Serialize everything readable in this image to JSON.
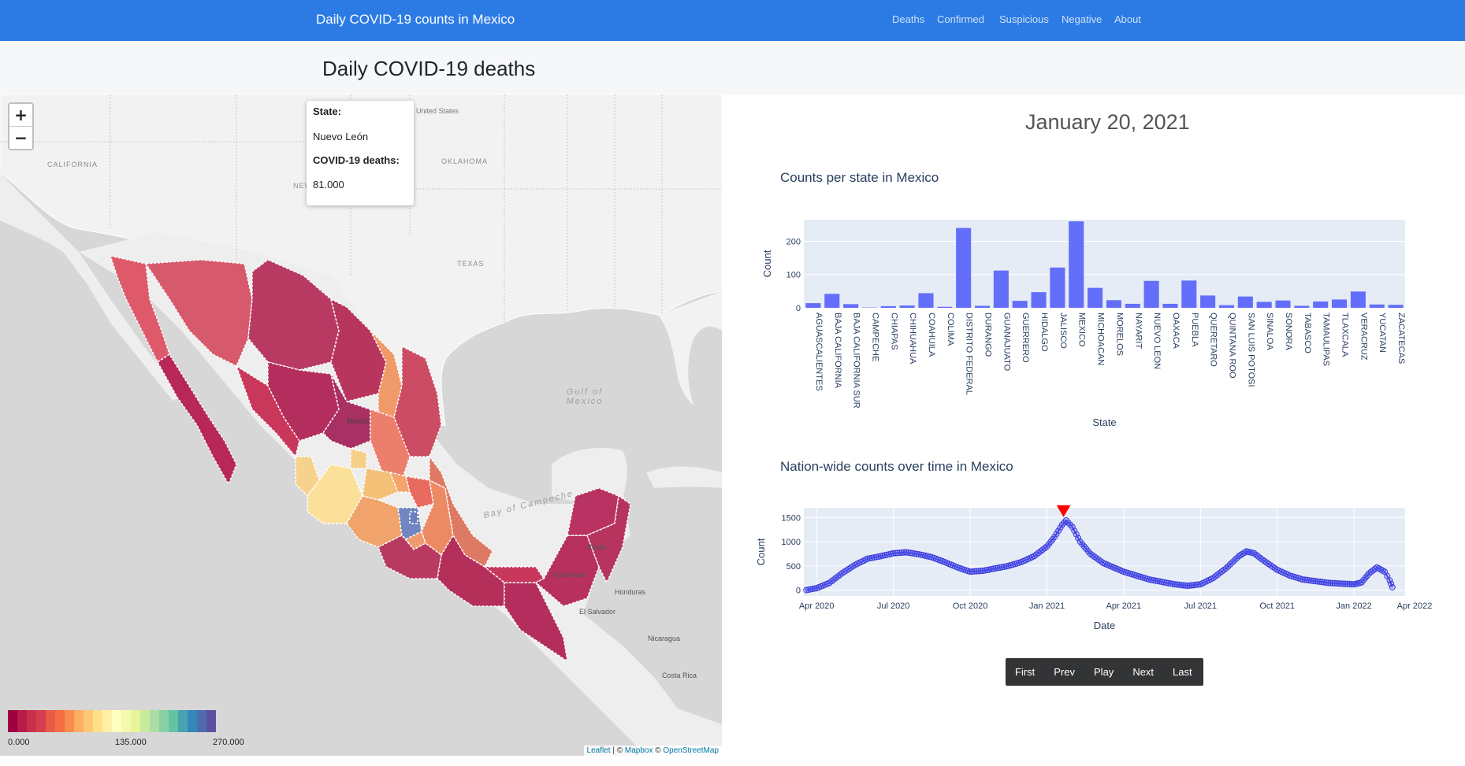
{
  "navbar": {
    "brand": "Daily COVID-19 counts in Mexico",
    "links": [
      "Deaths",
      "Confirmed",
      "Suspicious",
      "Negative",
      "About"
    ]
  },
  "page": {
    "title": "Daily COVID-19 deaths"
  },
  "map": {
    "zoom_in": "+",
    "zoom_out": "−",
    "popup": {
      "state_label": "State:",
      "state_value": "Nuevo León",
      "metric_label": "COVID-19 deaths:",
      "metric_value": "81.000"
    },
    "legend": {
      "min": "0.000",
      "mid": "135.000",
      "max": "270.000",
      "colors": [
        "#9e0142",
        "#b51c4a",
        "#c8304b",
        "#d53e4f",
        "#e55b47",
        "#f46d43",
        "#f88c51",
        "#fdae61",
        "#fdc776",
        "#fee08b",
        "#fff0a6",
        "#ffffbf",
        "#f3faad",
        "#e6f598",
        "#c8e99e",
        "#abdda4",
        "#89d0a4",
        "#66c2a5",
        "#4aa2b1",
        "#3288bd",
        "#4f6bad",
        "#5e4fa2"
      ]
    },
    "labels": {
      "country_us": "United States",
      "gulf": "Gulf of Mexico",
      "bay_campeche": "Bay of Campeche",
      "mexico": "Mexico",
      "california": "CALIFORNIA",
      "new_mexico": "NEW MEXICO",
      "texas": "TEXAS",
      "oklahoma": "OKLAHOMA",
      "guatemala": "Guatemala",
      "honduras": "Honduras",
      "el_salvador": "El Salvador",
      "nicaragua": "Nicaragua",
      "costa_rica": "Costa Rica",
      "belize": "Belize"
    },
    "attribution": {
      "leaflet": "Leaflet",
      "sep1": " | © ",
      "mapbox": "Mapbox",
      "sep2": " © ",
      "osm": "OpenStreetMap"
    }
  },
  "date_title": "January 20, 2021",
  "bar_chart": {
    "title": "Counts per state in Mexico",
    "chart_data": {
      "type": "bar",
      "title": "Counts per state in Mexico",
      "xlabel": "State",
      "ylabel": "Count",
      "ylim": [
        0,
        265
      ],
      "yticks": [
        0,
        100,
        200
      ],
      "bar_color": "#636efa",
      "categories": [
        "AGUASCALIENTES",
        "BAJA CALIFORNIA",
        "BAJA CALIFORNIA SUR",
        "CAMPECHE",
        "CHIAPAS",
        "CHIHUAHUA",
        "COAHUILA",
        "COLIMA",
        "DISTRITO FEDERAL",
        "DURANGO",
        "GUANAJUATO",
        "GUERRERO",
        "HIDALGO",
        "JALISCO",
        "MEXICO",
        "MICHOACAN",
        "MORELOS",
        "NAYARIT",
        "NUEVO LEON",
        "OAXACA",
        "PUEBLA",
        "QUERETARO",
        "QUINTANA ROO",
        "SAN LUIS POTOSI",
        "SINALOA",
        "SONORA",
        "TABASCO",
        "TAMAULIPAS",
        "TLAXCALA",
        "VERACRUZ",
        "YUCATAN",
        "ZACATECAS"
      ],
      "values": [
        14,
        42,
        11,
        1,
        5,
        7,
        44,
        3,
        240,
        6,
        112,
        21,
        47,
        121,
        260,
        60,
        23,
        12,
        81,
        12,
        82,
        37,
        8,
        34,
        18,
        22,
        6,
        19,
        25,
        49,
        10,
        9
      ]
    }
  },
  "line_chart": {
    "title": "Nation-wide counts over time in Mexico",
    "chart_data": {
      "type": "line",
      "title": "Nation-wide counts over time in Mexico",
      "xlabel": "Date",
      "ylabel": "Count",
      "ylim": [
        -120,
        1700
      ],
      "yticks": [
        0,
        500,
        1000,
        1500
      ],
      "x_range_months": [
        0.5,
        24
      ],
      "xticks": [
        {
          "m": 1,
          "label": "Apr 2020"
        },
        {
          "m": 4,
          "label": "Jul 2020"
        },
        {
          "m": 7,
          "label": "Oct 2020"
        },
        {
          "m": 10,
          "label": "Jan 2021"
        },
        {
          "m": 13,
          "label": "Apr 2021"
        },
        {
          "m": 16,
          "label": "Jul 2021"
        },
        {
          "m": 19,
          "label": "Oct 2021"
        },
        {
          "m": 22,
          "label": "Jan 2022"
        },
        {
          "m": 25,
          "label": "Apr 2022"
        }
      ],
      "series_color": "#3b3bdc",
      "marker_month": 10.65,
      "marker_value": 1640,
      "keypoints": [
        [
          0.6,
          0
        ],
        [
          1.0,
          40
        ],
        [
          1.5,
          150
        ],
        [
          2.0,
          350
        ],
        [
          2.5,
          520
        ],
        [
          3.0,
          650
        ],
        [
          3.5,
          700
        ],
        [
          4.0,
          760
        ],
        [
          4.5,
          780
        ],
        [
          5.0,
          740
        ],
        [
          5.5,
          680
        ],
        [
          6.0,
          580
        ],
        [
          6.5,
          470
        ],
        [
          7.0,
          380
        ],
        [
          7.5,
          400
        ],
        [
          8.0,
          450
        ],
        [
          8.5,
          500
        ],
        [
          9.0,
          580
        ],
        [
          9.5,
          700
        ],
        [
          10.0,
          900
        ],
        [
          10.3,
          1100
        ],
        [
          10.6,
          1350
        ],
        [
          10.75,
          1440
        ],
        [
          11.0,
          1300
        ],
        [
          11.3,
          1000
        ],
        [
          11.7,
          750
        ],
        [
          12.2,
          560
        ],
        [
          13.0,
          380
        ],
        [
          14.0,
          220
        ],
        [
          15.0,
          120
        ],
        [
          15.5,
          90
        ],
        [
          16.0,
          120
        ],
        [
          16.5,
          250
        ],
        [
          17.0,
          450
        ],
        [
          17.5,
          700
        ],
        [
          17.8,
          800
        ],
        [
          18.1,
          760
        ],
        [
          18.5,
          600
        ],
        [
          19.0,
          420
        ],
        [
          19.5,
          300
        ],
        [
          20.0,
          220
        ],
        [
          21.0,
          150
        ],
        [
          22.0,
          120
        ],
        [
          22.3,
          160
        ],
        [
          22.6,
          350
        ],
        [
          22.9,
          470
        ],
        [
          23.2,
          380
        ],
        [
          23.4,
          200
        ],
        [
          23.5,
          60
        ]
      ]
    }
  },
  "controls": [
    "First",
    "Prev",
    "Play",
    "Next",
    "Last"
  ]
}
